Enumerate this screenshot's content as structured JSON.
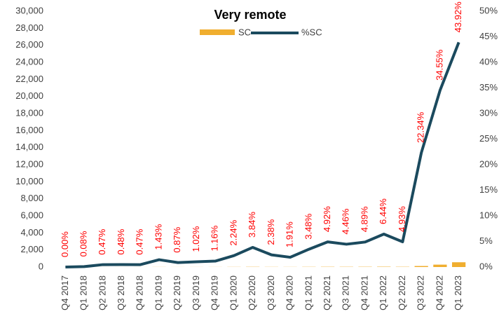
{
  "chart_data": {
    "type": "bar_line",
    "title": "Very remote",
    "categories": [
      "Q4 2017",
      "Q1 2018",
      "Q2 2018",
      "Q3 2018",
      "Q4 2018",
      "Q1 2019",
      "Q2 2019",
      "Q3 2019",
      "Q4 2019",
      "Q1 2020",
      "Q2 2020",
      "Q3 2020",
      "Q4 2020",
      "Q1 2021",
      "Q2 2021",
      "Q3 2021",
      "Q4 2021",
      "Q1 2022",
      "Q2 2022",
      "Q3 2022",
      "Q4 2022",
      "Q1 2023"
    ],
    "series": [
      {
        "name": "SC",
        "color": "#f0ae2f",
        "values": [
          0,
          1,
          4,
          4,
          4,
          10,
          6,
          7,
          8,
          15,
          25,
          16,
          13,
          22,
          30,
          28,
          31,
          40,
          30,
          120,
          280,
          560
        ]
      },
      {
        "name": "%SC",
        "color": "#1b4a5e",
        "axis": "y2",
        "values": [
          0.0,
          0.08,
          0.47,
          0.48,
          0.47,
          1.43,
          0.87,
          1.02,
          1.16,
          2.24,
          3.84,
          2.38,
          1.91,
          3.48,
          4.92,
          4.46,
          4.89,
          6.44,
          4.93,
          22.34,
          34.55,
          43.92
        ],
        "value_labels": [
          "0.00%",
          "0.08%",
          "0.47%",
          "0.48%",
          "0.47%",
          "1.43%",
          "0.87%",
          "1.02%",
          "1.16%",
          "2.24%",
          "3.84%",
          "2.38%",
          "1.91%",
          "3.48%",
          "4.92%",
          "4.46%",
          "4.89%",
          "6.44%",
          "4.93%",
          "22.34%",
          "34.55%",
          "43.92%"
        ]
      }
    ],
    "ylim": [
      0,
      30000
    ],
    "yticks": [
      0,
      {
        "value": 2000,
        "label": "2,000"
      },
      {
        "value": 4000,
        "label": "4,000"
      },
      {
        "value": 6000,
        "label": "6,000"
      },
      {
        "value": 8000,
        "label": "8,000"
      },
      {
        "value": 10000,
        "label": "10,000"
      },
      {
        "value": 12000,
        "label": "12,000"
      },
      {
        "value": 14000,
        "label": "14,000"
      },
      {
        "value": 16000,
        "label": "16,000"
      },
      {
        "value": 18000,
        "label": "18,000"
      },
      {
        "value": 20000,
        "label": "20,000"
      },
      {
        "value": 22000,
        "label": "22,000"
      },
      {
        "value": 24000,
        "label": "24,000"
      },
      {
        "value": 26000,
        "label": "26,000"
      },
      {
        "value": 28000,
        "label": "28,000"
      },
      {
        "value": 30000,
        "label": "30,000"
      }
    ],
    "y2lim": [
      0,
      50
    ],
    "y2ticks": [
      {
        "value": 0,
        "label": "0%"
      },
      {
        "value": 5,
        "label": "5%"
      },
      {
        "value": 10,
        "label": "10%"
      },
      {
        "value": 15,
        "label": "15%"
      },
      {
        "value": 20,
        "label": "20%"
      },
      {
        "value": 25,
        "label": "25%"
      },
      {
        "value": 30,
        "label": "30%"
      },
      {
        "value": 35,
        "label": "35%"
      },
      {
        "value": 40,
        "label": "40%"
      },
      {
        "value": 45,
        "label": "45%"
      },
      {
        "value": 50,
        "label": "50%"
      }
    ],
    "value_label_color": "#ff0000"
  }
}
